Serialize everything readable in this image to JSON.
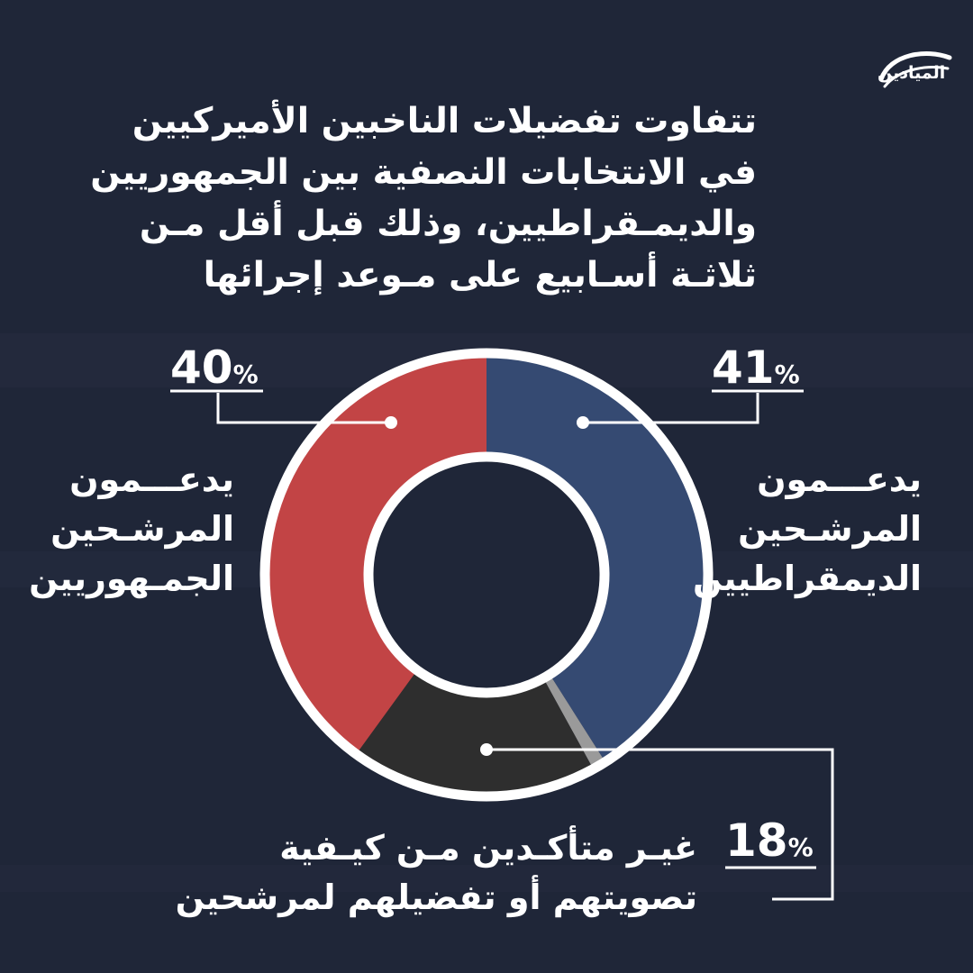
{
  "brand": {
    "logo_text": "الميادين"
  },
  "title_lines": [
    "تتفاوت تفضيلات الناخبين الأميركيين",
    "في الانتخابات النصفية بين الجمهوريين",
    "والديمـقراطيين، وذلك قبل أقل مـن",
    "ثلاثـة أسـابيع على مـوعد إجرائها"
  ],
  "colors": {
    "background": "#1f2638",
    "democrats": "#354a72",
    "republicans": "#c24445",
    "undecided": "#2e2e2e",
    "other": "#9a9a9a",
    "ring": "#ffffff"
  },
  "chart_data": {
    "type": "pie",
    "variant": "donut",
    "slices": [
      {
        "key": "democrats",
        "value": 41,
        "value_label": "41",
        "percent_sign": "%",
        "label_lines": [
          "يدعـــمون",
          "المرشـحين",
          "الديمقراطيين"
        ],
        "color": "#354a72"
      },
      {
        "key": "other",
        "value": 1,
        "value_label": "",
        "percent_sign": "",
        "label_lines": [],
        "color": "#9a9a9a"
      },
      {
        "key": "undecided",
        "value": 18,
        "value_label": "18",
        "percent_sign": "%",
        "label_lines": [
          "غيـر متأكـدين مـن كيـفية",
          "تصويتهم أو تفضيلهم لمرشحين"
        ],
        "color": "#2e2e2e"
      },
      {
        "key": "republicans",
        "value": 40,
        "value_label": "40",
        "percent_sign": "%",
        "label_lines": [
          "يدعـــمون",
          "المرشـحين",
          "الجمـهوريين"
        ],
        "color": "#c24445"
      }
    ]
  }
}
